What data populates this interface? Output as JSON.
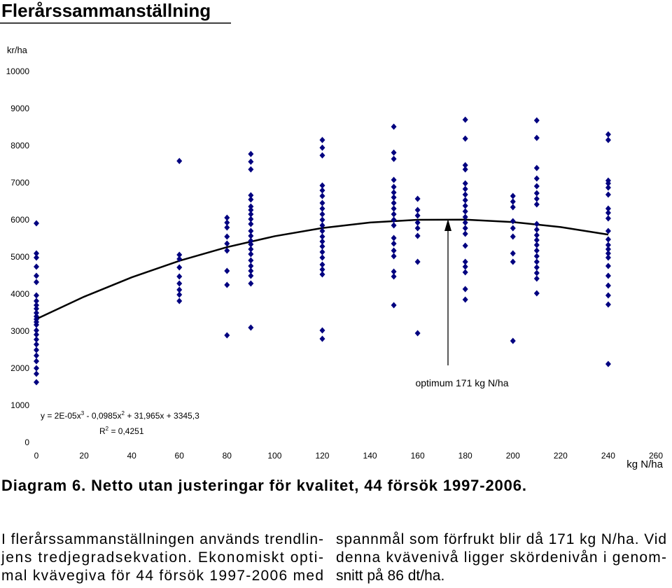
{
  "header": {
    "title": "Flerårssammanställning"
  },
  "chart_data": {
    "type": "scatter",
    "y_label": "kr/ha",
    "x_label": "kg N/ha",
    "xlim": [
      0,
      260
    ],
    "xticks": [
      0,
      20,
      40,
      60,
      80,
      100,
      120,
      140,
      160,
      180,
      200,
      220,
      240,
      260
    ],
    "ylim": [
      0,
      10000
    ],
    "yticks": [
      0,
      1000,
      2000,
      3000,
      4000,
      5000,
      6000,
      7000,
      8000,
      9000,
      10000
    ],
    "color": "#000080",
    "x": [
      0,
      0,
      0,
      0,
      0,
      0,
      0,
      0,
      0,
      0,
      0,
      0,
      0,
      0,
      0,
      0,
      0,
      0,
      0,
      0,
      0,
      0,
      0,
      0,
      0,
      60,
      60,
      60,
      60,
      60,
      60,
      60,
      60,
      60,
      80,
      80,
      80,
      80,
      80,
      80,
      80,
      80,
      80,
      90,
      90,
      90,
      90,
      90,
      90,
      90,
      90,
      90,
      90,
      90,
      90,
      90,
      90,
      90,
      90,
      90,
      90,
      90,
      90,
      90,
      90,
      120,
      120,
      120,
      120,
      120,
      120,
      120,
      120,
      120,
      120,
      120,
      120,
      120,
      120,
      120,
      120,
      120,
      120,
      120,
      120,
      120,
      120,
      150,
      150,
      150,
      150,
      150,
      150,
      150,
      150,
      150,
      150,
      150,
      150,
      150,
      150,
      150,
      150,
      150,
      150,
      150,
      160,
      160,
      160,
      160,
      160,
      160,
      160,
      160,
      180,
      180,
      180,
      180,
      180,
      180,
      180,
      180,
      180,
      180,
      180,
      180,
      180,
      180,
      180,
      180,
      180,
      180,
      180,
      180,
      200,
      200,
      200,
      200,
      200,
      200,
      200,
      200,
      200,
      210,
      210,
      210,
      210,
      210,
      210,
      210,
      210,
      210,
      210,
      210,
      210,
      210,
      210,
      210,
      210,
      210,
      210,
      210,
      210,
      240,
      240,
      240,
      240,
      240,
      240,
      240,
      240,
      240,
      240,
      240,
      240,
      240,
      240,
      240,
      240,
      240,
      240,
      240,
      240,
      240
    ],
    "y": [
      5925,
      5113,
      5000,
      4755,
      4509,
      4340,
      3981,
      3830,
      3717,
      3623,
      3509,
      3415,
      3340,
      3264,
      3189,
      3038,
      2925,
      2792,
      2660,
      2509,
      2358,
      2208,
      2019,
      1868,
      1642,
      7604,
      5075,
      4962,
      4736,
      4491,
      4302,
      4132,
      4000,
      3830,
      6075,
      5943,
      5811,
      5566,
      5377,
      5189,
      4642,
      4264,
      2906,
      7792,
      7585,
      7377,
      6679,
      6566,
      6377,
      6283,
      6170,
      6038,
      5906,
      5717,
      5585,
      5453,
      5358,
      5226,
      5094,
      4925,
      4774,
      4642,
      4509,
      4302,
      3113,
      8170,
      7962,
      7755,
      6943,
      6811,
      6660,
      6472,
      6321,
      6170,
      6019,
      5868,
      5717,
      5566,
      5434,
      5302,
      5151,
      5000,
      4811,
      4679,
      4547,
      3038,
      2811,
      8528,
      7830,
      7660,
      7094,
      6906,
      6755,
      6623,
      6472,
      6321,
      6170,
      6019,
      5868,
      5528,
      5377,
      5189,
      5038,
      4623,
      4491,
      3717,
      6585,
      6283,
      6132,
      5943,
      5792,
      5585,
      4887,
      2962,
      8717,
      8208,
      7491,
      7377,
      7000,
      6849,
      6698,
      6547,
      6396,
      6245,
      6094,
      5943,
      5792,
      5642,
      5321,
      4887,
      4755,
      4604,
      4151,
      3868,
      6660,
      6509,
      6358,
      5981,
      5792,
      5566,
      5113,
      4887,
      2755,
      8698,
      8226,
      7415,
      7132,
      6925,
      6736,
      6585,
      6434,
      5906,
      5755,
      5604,
      5472,
      5340,
      5189,
      5038,
      4887,
      4736,
      4585,
      4434,
      4038,
      8321,
      8170,
      7075,
      7000,
      6887,
      6698,
      6321,
      6208,
      6057,
      5717,
      5491,
      5340,
      5226,
      5113,
      5000,
      4774,
      4509,
      4245,
      3981,
      3736,
      2132
    ],
    "trendline": {
      "color": "#000000",
      "x": [
        0,
        20,
        40,
        60,
        80,
        100,
        120,
        140,
        160,
        180,
        200,
        220,
        240
      ],
      "y": [
        3345,
        3945,
        4468,
        4913,
        5282,
        5577,
        5797,
        5945,
        6020,
        6024,
        5958,
        5823,
        5620
      ],
      "equation": [
        "y = 2E-05x",
        "3",
        " - 0,0985x",
        "2",
        " + 31,965x + 3345,3"
      ],
      "r2": [
        "R",
        "2",
        " = 0,4251"
      ]
    },
    "annotation": "optimum 171 kg N/ha",
    "caption": "Diagram 6. Netto utan justeringar för kvalitet, 44 försök 1997-2006."
  },
  "body": {
    "left": [
      "I flerårssammanställningen används trendlin-",
      "jens tredjegradsekvation. Ekonomiskt opti-",
      "mal kvävegiva för 44 försök 1997-2006 med"
    ],
    "right": [
      "spannmål som förfrukt blir då 171 kg N/ha. Vid",
      "denna kvävenivå ligger skördenivån i genom-",
      "snitt på 86 dt/ha."
    ]
  }
}
